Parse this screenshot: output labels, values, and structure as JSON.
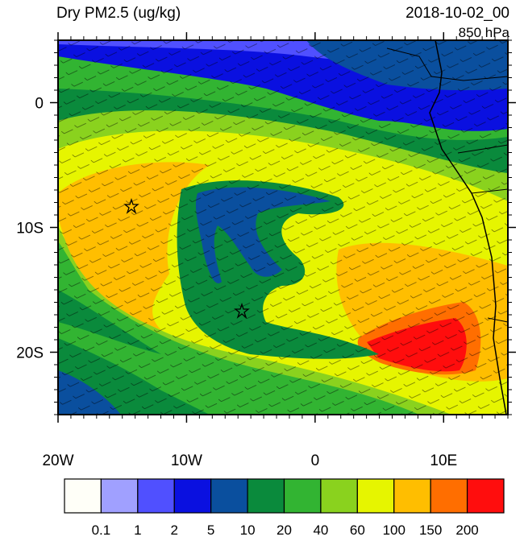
{
  "map": {
    "title": "Dry PM2.5 (ug/kg)",
    "time": "2018-10-02_00",
    "level": "850 hPa",
    "xlim": [
      -20,
      15
    ],
    "ylim": [
      -25,
      5
    ],
    "x_ticks": [
      {
        "value": -20,
        "label": "20W"
      },
      {
        "value": -10,
        "label": "10W"
      },
      {
        "value": 0,
        "label": "0"
      },
      {
        "value": 10,
        "label": "10E"
      }
    ],
    "y_ticks": [
      {
        "value": 0,
        "label": "0"
      },
      {
        "value": -10,
        "label": "10S"
      },
      {
        "value": -20,
        "label": "20S"
      }
    ],
    "colorbar": {
      "levels": [
        0.1,
        1,
        2,
        5,
        10,
        20,
        40,
        60,
        100,
        150,
        200
      ],
      "colors": [
        "#fffff8",
        "#a0a0ff",
        "#5050ff",
        "#0a10e0",
        "#0a4f9e",
        "#0a8a3c",
        "#32b432",
        "#8ad21e",
        "#e6f500",
        "#ffbe00",
        "#ff6e00",
        "#ff0d0d"
      ]
    }
  }
}
